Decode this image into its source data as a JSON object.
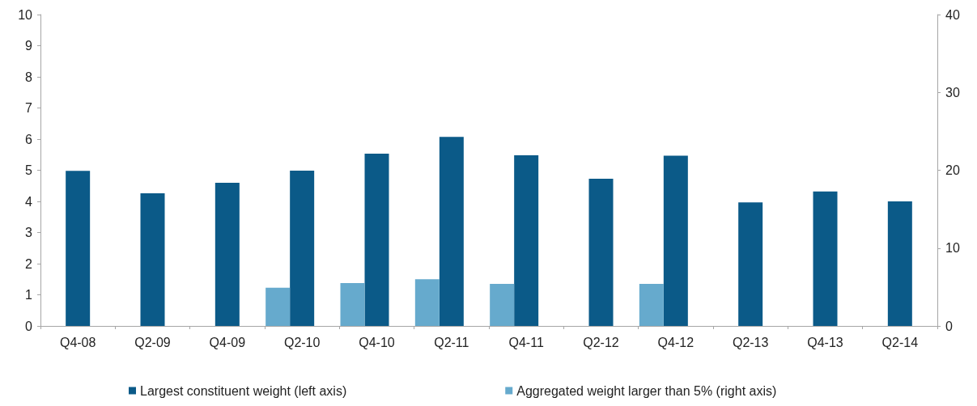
{
  "chart_data": {
    "type": "bar",
    "categories": [
      "Q4-08",
      "Q2-09",
      "Q4-09",
      "Q2-10",
      "Q4-10",
      "Q2-11",
      "Q4-11",
      "Q2-12",
      "Q4-12",
      "Q2-13",
      "Q4-13",
      "Q2-14"
    ],
    "series": [
      {
        "name": "Largest constituent weight (left axis)",
        "color": "#0b5a88",
        "values": [
          4.98,
          4.26,
          4.6,
          4.99,
          5.53,
          6.07,
          5.48,
          4.73,
          5.47,
          3.97,
          4.32,
          4.0
        ]
      },
      {
        "name": "Aggregated weight larger than 5% (right axis)",
        "color": "#66aacd",
        "axis": "y2",
        "values": [
          null,
          null,
          null,
          4.9,
          5.5,
          6.0,
          5.4,
          null,
          5.4,
          null,
          null,
          null
        ]
      }
    ],
    "ylim": [
      0,
      10
    ],
    "yticks": [
      0,
      1,
      2,
      3,
      4,
      5,
      6,
      7,
      8,
      9,
      10
    ],
    "y2lim": [
      0,
      40
    ],
    "y2ticks": [
      0,
      10,
      20,
      30,
      40
    ],
    "legend": "bottom"
  }
}
